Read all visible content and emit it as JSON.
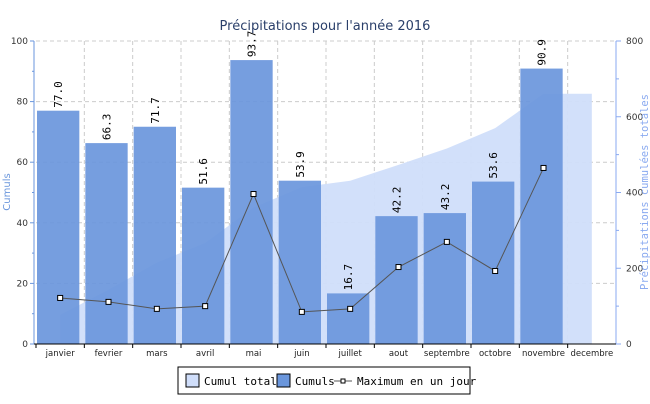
{
  "chart_data": {
    "type": "bar",
    "title": "Précipitations pour l'année 2016",
    "categories": [
      "janvier",
      "fevrier",
      "mars",
      "avril",
      "mai",
      "juin",
      "juillet",
      "aout",
      "septembre",
      "octobre",
      "novembre",
      "decembre"
    ],
    "ylabel": "Cumuls",
    "y2label": "Précipitations cumulées totales",
    "ylim": [
      0,
      100
    ],
    "y2lim": [
      0,
      800
    ],
    "yticks": [
      "0",
      "20",
      "40",
      "60",
      "80",
      "100"
    ],
    "y2ticks": [
      "0",
      "200",
      "400",
      "600",
      "800"
    ],
    "grid": true,
    "legend_position": "bottom",
    "series": [
      {
        "name": "Cumul total",
        "type": "area",
        "axis": "right",
        "color": "#d0defa",
        "values": [
          77.0,
          143.3,
          215.0,
          266.6,
          360.3,
          414.2,
          430.9,
          473.1,
          516.3,
          569.9,
          660.8,
          660.8
        ]
      },
      {
        "name": "Cumuls",
        "type": "bar",
        "axis": "left",
        "color": "#6a96dc",
        "values": [
          77.0,
          66.3,
          71.7,
          51.6,
          93.7,
          53.9,
          16.7,
          42.2,
          43.2,
          53.6,
          90.9,
          null
        ],
        "labels": [
          "77.0",
          "66.3",
          "71.7",
          "51.6",
          "93.7",
          "53.9",
          "16.7",
          "42.2",
          "43.2",
          "53.6",
          "90.9",
          ""
        ]
      },
      {
        "name": "Maximum en un jour",
        "type": "line",
        "axis": "left",
        "color": "#555555",
        "values": [
          15.2,
          13.9,
          11.6,
          12.5,
          49.5,
          10.6,
          11.6,
          25.4,
          33.7,
          24.1,
          58.1,
          null
        ]
      }
    ]
  }
}
